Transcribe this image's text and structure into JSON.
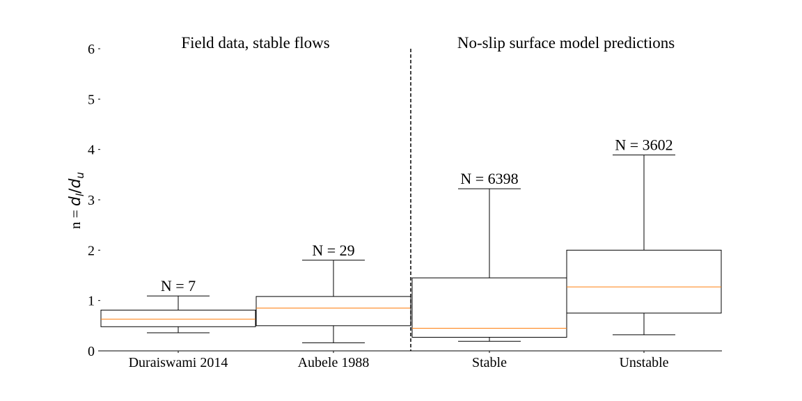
{
  "chart_data": {
    "type": "box",
    "title": "",
    "xlabel": "",
    "ylabel": "n = ",
    "ylabel_math": {
      "base": "d",
      "sub1": "l",
      "sep": "/",
      "base2": "d",
      "sub2": "u"
    },
    "ylim": [
      0,
      6
    ],
    "yticks": [
      0,
      1,
      2,
      3,
      4,
      5,
      6
    ],
    "grid": false,
    "groups": [
      {
        "label": "Field data, stable flows"
      },
      {
        "label": "No-slip surface model predictions"
      }
    ],
    "categories": [
      "Duraiswami 2014",
      "Aubele 1988",
      "Stable",
      "Unstable"
    ],
    "boxes": [
      {
        "label": "Duraiswami 2014",
        "whislo": 0.36,
        "q1": 0.48,
        "med": 0.63,
        "q3": 0.81,
        "whishi": 1.09,
        "n_label": "N = 7"
      },
      {
        "label": "Aubele 1988",
        "whislo": 0.16,
        "q1": 0.5,
        "med": 0.85,
        "q3": 1.08,
        "whishi": 1.8,
        "n_label": "N = 29"
      },
      {
        "label": "Stable",
        "whislo": 0.19,
        "q1": 0.27,
        "med": 0.45,
        "q3": 1.45,
        "whishi": 3.22,
        "n_label": "N = 6398"
      },
      {
        "label": "Unstable",
        "whislo": 0.32,
        "q1": 0.75,
        "med": 1.27,
        "q3": 2.0,
        "whishi": 3.89,
        "n_label": "N = 3602"
      }
    ],
    "colors": {
      "box": "#000000",
      "median": "#ff7f0e",
      "divider": "#000000"
    }
  }
}
